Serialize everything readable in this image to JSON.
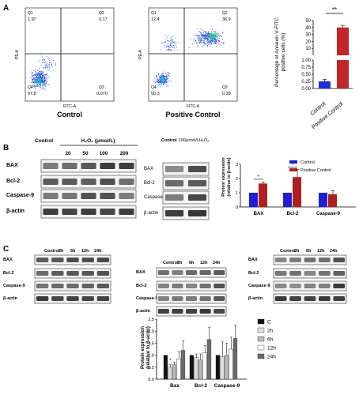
{
  "panels": {
    "A": "A",
    "B": "B",
    "C": "C"
  },
  "flow": [
    {
      "title": "Control",
      "xlabel": "FITC-A",
      "ylabel": "PE-A",
      "quadrants": {
        "q1": "Q1",
        "q2": "Q2",
        "q3": "Q3",
        "q4": "Q4"
      },
      "values": {
        "q1": "1.97",
        "q2": "0.17",
        "q3": "0.070",
        "q4": "97.8"
      }
    },
    {
      "title": "Positive Control",
      "xlabel": "FITC-A",
      "ylabel": "PE-A",
      "quadrants": {
        "q1": "Q1",
        "q2": "Q2",
        "q3": "Q3",
        "q4": "Q4"
      },
      "values": {
        "q1": "12.4",
        "q2": "36.9",
        "q3": "0.39",
        "q4": "50.3"
      }
    }
  ],
  "apoptosis_chart": {
    "ylabel": "Percentage of Annexin V-FITC positive cells (%)",
    "significance": "**",
    "ticks_upper": [
      "0",
      "10",
      "20",
      "30",
      "40",
      "50"
    ],
    "ticks_lower": [
      "0.00",
      "0.25",
      "0.50",
      "0.75",
      "1.00"
    ]
  },
  "blot_b_left": {
    "control_label": "Control",
    "treatment_label": "H₂O₂ (μmol/L)",
    "doses": [
      "20",
      "50",
      "100",
      "200"
    ],
    "rows": [
      "BAX",
      "Bcl-2",
      "Caspase-9",
      "β-actin"
    ]
  },
  "blot_b_mid": {
    "control_label": "Control",
    "treatment_label": "100μmol/LH₂O₂",
    "rows": [
      "BAX",
      "Bcl-2",
      "Caspase-9",
      "β-actin"
    ]
  },
  "protein_b_chart": {
    "ylabel": "Protein expression (relative to β-actin)",
    "yticks": [
      "0",
      "1",
      "2",
      "3"
    ],
    "sig": [
      "*",
      "*"
    ],
    "legend_colors": {
      "Control": "#1f1fd6",
      "Positive Control": "#b01f1f"
    }
  },
  "blot_c": {
    "columns": [
      "Control",
      "2h",
      "6h",
      "12h",
      "24h"
    ],
    "rows": [
      "BAX",
      "Bcl-2",
      "Caspase-9",
      "β-actin"
    ]
  },
  "protein_c_chart": {
    "ylabel": "Protein expression (relative to β-actin)",
    "yticks": [
      "0.0",
      "0.5",
      "1.0",
      "1.5",
      "2.0",
      "2.5"
    ],
    "sig": [
      "*",
      "*"
    ],
    "series_colors": [
      "#111111",
      "#dddddd",
      "#b9b9b9",
      "#fafafa",
      "#6b6b6b"
    ]
  },
  "chart_data": [
    {
      "type": "bar",
      "categories": [
        "Control",
        "Positive Control"
      ],
      "values": [
        0.25,
        40
      ],
      "errors": [
        0.07,
        3
      ],
      "ylabel": "Percentage of Annexin V-FITC positive cells (%)",
      "ylim_lower": [
        0,
        1
      ],
      "ylim_upper": [
        0,
        50
      ],
      "axis_break": true,
      "colors": [
        "#1f2fd6",
        "#c0262a"
      ]
    },
    {
      "type": "bar",
      "categories": [
        "BAX",
        "Bcl-2",
        "Caspase-9"
      ],
      "series": [
        {
          "name": "Control",
          "values": [
            1.0,
            1.0,
            1.0
          ],
          "errors": [
            0,
            0,
            0
          ]
        },
        {
          "name": "Positive Control",
          "values": [
            1.65,
            2.1,
            0.9
          ],
          "errors": [
            0.1,
            0.55,
            0.25
          ]
        }
      ],
      "ylabel": "Protein expression (relative to β-actin)",
      "ylim": [
        0,
        3
      ],
      "legend": "top-right"
    },
    {
      "type": "bar",
      "categories": [
        "Bax",
        "Bcl-2",
        "Caspase-9"
      ],
      "series": [
        {
          "name": "C",
          "values": [
            1.0,
            1.0,
            1.0
          ],
          "errors": [
            0,
            0,
            0
          ]
        },
        {
          "name": "2h",
          "values": [
            0.5,
            0.9,
            0.95
          ],
          "errors": [
            0.1,
            0.15,
            0.6
          ]
        },
        {
          "name": "6h",
          "values": [
            0.6,
            0.8,
            1.0
          ],
          "errors": [
            0.1,
            0.25,
            0.5
          ]
        },
        {
          "name": "12h",
          "values": [
            0.85,
            1.1,
            1.25
          ],
          "errors": [
            0.3,
            0.3,
            0.5
          ]
        },
        {
          "name": "24h",
          "values": [
            1.2,
            1.65,
            1.7
          ],
          "errors": [
            0.4,
            0.5,
            0.55
          ]
        }
      ],
      "ylabel": "Protein expression (relative to β-actin)",
      "ylim": [
        0,
        2.5
      ],
      "legend": "top-right"
    }
  ]
}
